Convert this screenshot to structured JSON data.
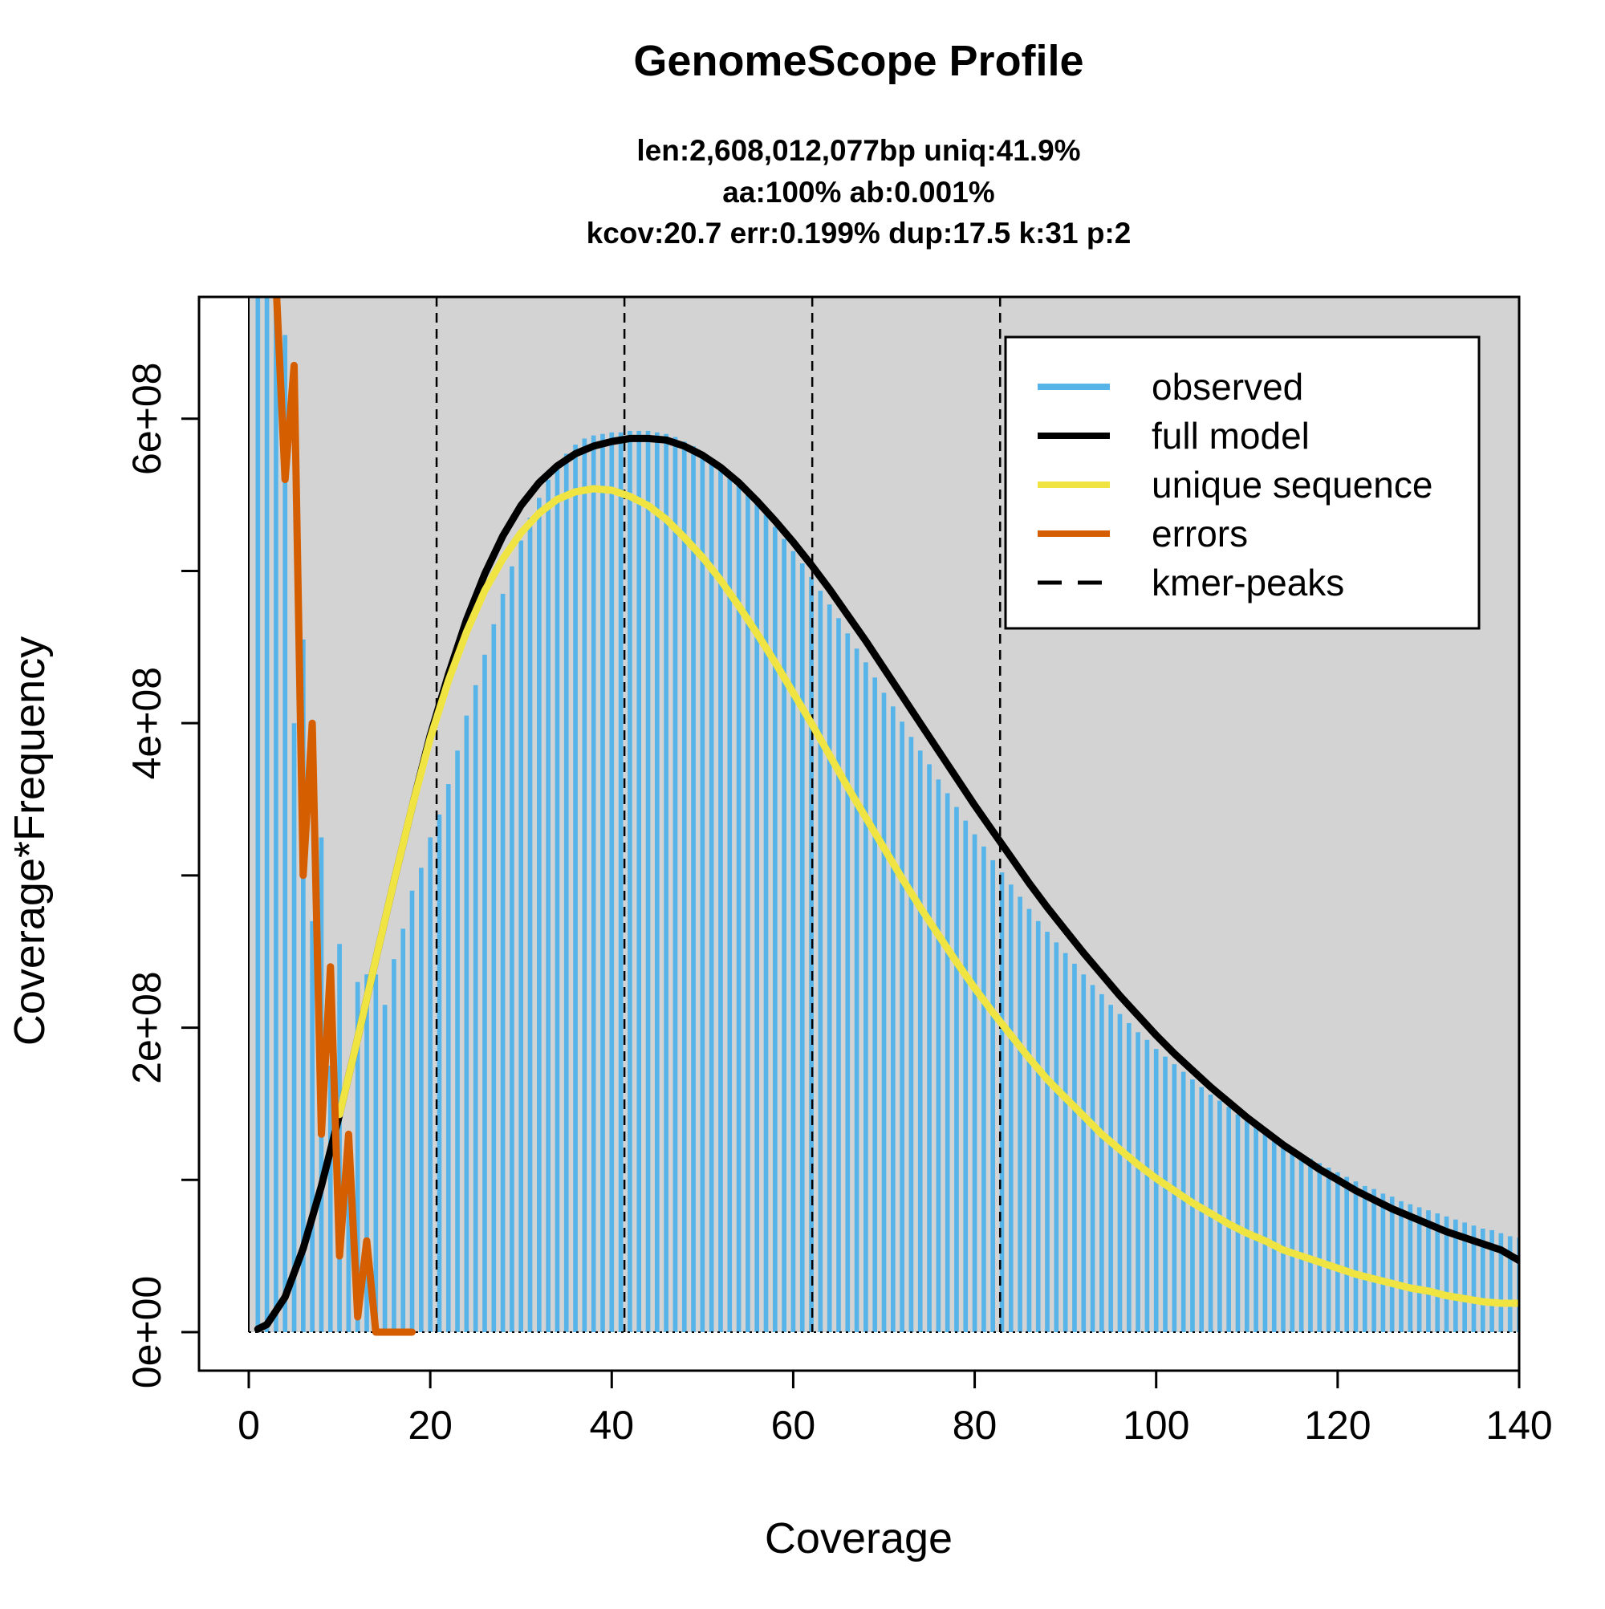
{
  "chart_data": {
    "type": "line",
    "title": "GenomeScope Profile",
    "subtitle_lines": [
      "len:2,608,012,077bp uniq:41.9%",
      "aa:100% ab:0.001%",
      "kcov:20.7 err:0.199%  dup:17.5  k:31 p:2"
    ],
    "xlabel": "Coverage",
    "ylabel": "Coverage*Frequency",
    "xlim": [
      0,
      140
    ],
    "ylim": [
      0,
      680000000
    ],
    "x_ticks": [
      0,
      20,
      40,
      60,
      80,
      100,
      120,
      140
    ],
    "x_tick_labels": [
      "0",
      "20",
      "40",
      "60",
      "80",
      "100",
      "120",
      "140"
    ],
    "y_ticks": [
      0,
      200000000,
      400000000,
      600000000
    ],
    "y_tick_labels": [
      "0e+00",
      "2e+08",
      "4e+08",
      "6e+08"
    ],
    "y_minor_ticks": [
      100000000,
      300000000,
      500000000
    ],
    "legend_position": "top-right",
    "grid": false,
    "colors": {
      "observed": "#56B4E9",
      "full_model": "#000000",
      "unique_sequence": "#F0E442",
      "errors": "#D55E00",
      "plot_background": "#D3D3D3"
    },
    "legend": [
      {
        "label": "observed",
        "key": "observed",
        "style": "solid"
      },
      {
        "label": "full model",
        "key": "full_model",
        "style": "solid"
      },
      {
        "label": "unique sequence",
        "key": "unique_sequence",
        "style": "solid"
      },
      {
        "label": "errors",
        "key": "errors",
        "style": "solid"
      },
      {
        "label": "kmer-peaks",
        "key": "full_model",
        "style": "dashed"
      }
    ],
    "kmer_peaks": [
      20.7,
      41.4,
      62.1,
      82.8
    ],
    "observed": {
      "x": [
        1,
        2,
        3,
        4,
        5,
        6,
        7,
        8,
        9,
        10,
        11,
        12,
        13,
        14,
        15,
        16,
        17,
        18,
        19,
        20,
        21,
        22,
        23,
        24,
        25,
        26,
        27,
        28,
        29,
        30,
        31,
        32,
        33,
        34,
        35,
        36,
        37,
        38,
        39,
        40,
        41,
        42,
        43,
        44,
        45,
        46,
        47,
        48,
        49,
        50,
        51,
        52,
        53,
        54,
        55,
        56,
        57,
        58,
        59,
        60,
        61,
        62,
        63,
        64,
        65,
        66,
        67,
        68,
        69,
        70,
        71,
        72,
        73,
        74,
        75,
        76,
        77,
        78,
        79,
        80,
        81,
        82,
        83,
        84,
        85,
        86,
        87,
        88,
        89,
        90,
        91,
        92,
        93,
        94,
        95,
        96,
        97,
        98,
        99,
        100,
        101,
        102,
        103,
        104,
        105,
        106,
        107,
        108,
        109,
        110,
        111,
        112,
        113,
        114,
        115,
        116,
        117,
        118,
        119,
        120,
        121,
        122,
        123,
        124,
        125,
        126,
        127,
        128,
        129,
        130,
        131,
        132,
        133,
        134,
        135,
        136,
        137,
        138,
        139,
        140
      ],
      "y": [
        690000000,
        690000000,
        690000000,
        655000000,
        400000000,
        455000000,
        270000000,
        325000000,
        175000000,
        255000000,
        130000000,
        230000000,
        235000000,
        235000000,
        215000000,
        245000000,
        265000000,
        290000000,
        305000000,
        325000000,
        340000000,
        360000000,
        382000000,
        405000000,
        425000000,
        445000000,
        465000000,
        485000000,
        503000000,
        520000000,
        535000000,
        548000000,
        560000000,
        569000000,
        577000000,
        583000000,
        587000000,
        589000000,
        590000000,
        591000000,
        591000000,
        592000000,
        592000000,
        592000000,
        591000000,
        590000000,
        588000000,
        585000000,
        582000000,
        578000000,
        574000000,
        569000000,
        564000000,
        558000000,
        551000000,
        544000000,
        537000000,
        529000000,
        521000000,
        513000000,
        505000000,
        496000000,
        487000000,
        478000000,
        469000000,
        459000000,
        449000000,
        440000000,
        430000000,
        420000000,
        411000000,
        401000000,
        391000000,
        382000000,
        373000000,
        363000000,
        354000000,
        345000000,
        336000000,
        327000000,
        319000000,
        310000000,
        302000000,
        294000000,
        286000000,
        278000000,
        270000000,
        263000000,
        256000000,
        249000000,
        242000000,
        235000000,
        228000000,
        222000000,
        215000000,
        209000000,
        203000000,
        197000000,
        192000000,
        186000000,
        181000000,
        176000000,
        171000000,
        166000000,
        161000000,
        156000000,
        152000000,
        148000000,
        143000000,
        139000000,
        135000000,
        131000000,
        128000000,
        124000000,
        120000000,
        117000000,
        114000000,
        111000000,
        108000000,
        105000000,
        102000000,
        99000000,
        96000000,
        94000000,
        91000000,
        89000000,
        86000000,
        84000000,
        82000000,
        80000000,
        78000000,
        76000000,
        74000000,
        72000000,
        70000000,
        68000000,
        67000000,
        65000000,
        63000000,
        62000000
      ]
    },
    "errors": {
      "x": [
        3,
        4,
        5,
        6,
        7,
        8,
        9,
        10,
        11,
        12,
        13,
        14,
        15,
        16,
        17,
        18
      ],
      "y": [
        690000000,
        560000000,
        635000000,
        300000000,
        400000000,
        130000000,
        240000000,
        50000000,
        130000000,
        10000000,
        60000000,
        0,
        0,
        0,
        0,
        0
      ]
    },
    "full_model": {
      "x": [
        1,
        2,
        4,
        6,
        8,
        10,
        12,
        14,
        16,
        18,
        20,
        22,
        24,
        26,
        28,
        30,
        32,
        34,
        36,
        38,
        40,
        42,
        44,
        46,
        48,
        50,
        52,
        54,
        56,
        58,
        60,
        62,
        64,
        66,
        68,
        70,
        72,
        74,
        76,
        78,
        80,
        82,
        84,
        86,
        88,
        90,
        92,
        94,
        96,
        98,
        100,
        102,
        104,
        106,
        108,
        110,
        112,
        114,
        116,
        118,
        120,
        122,
        124,
        126,
        128,
        130,
        132,
        134,
        136,
        138,
        140
      ],
      "y": [
        2000000,
        5000000,
        23000000,
        55000000,
        96000000,
        143000000,
        193000000,
        245000000,
        296000000,
        345000000,
        392000000,
        432000000,
        468000000,
        498000000,
        523000000,
        543000000,
        558000000,
        569000000,
        577000000,
        582000000,
        585000000,
        587000000,
        587000000,
        586000000,
        582000000,
        576000000,
        568000000,
        558000000,
        546000000,
        533000000,
        519000000,
        504000000,
        488000000,
        471000000,
        454000000,
        436000000,
        418000000,
        400000000,
        382000000,
        364000000,
        346000000,
        329000000,
        312000000,
        295000000,
        279000000,
        264000000,
        249000000,
        235000000,
        221000000,
        208000000,
        195000000,
        183000000,
        172000000,
        161000000,
        151000000,
        141000000,
        132000000,
        123000000,
        115000000,
        107000000,
        100000000,
        93000000,
        87000000,
        81000000,
        76000000,
        71000000,
        66000000,
        62000000,
        58000000,
        54000000,
        47000000
      ]
    },
    "unique_sequence": {
      "x": [
        10,
        12,
        14,
        16,
        18,
        20,
        22,
        24,
        26,
        28,
        30,
        32,
        34,
        36,
        38,
        40,
        42,
        44,
        46,
        48,
        50,
        52,
        54,
        56,
        58,
        60,
        62,
        64,
        66,
        68,
        70,
        72,
        74,
        76,
        78,
        80,
        82,
        84,
        86,
        88,
        90,
        92,
        94,
        96,
        98,
        100,
        102,
        104,
        106,
        108,
        110,
        112,
        114,
        116,
        118,
        120,
        122,
        124,
        126,
        128,
        130,
        132,
        134,
        136,
        138,
        140
      ],
      "y": [
        143000000,
        193000000,
        245000000,
        296000000,
        345000000,
        390000000,
        428000000,
        460000000,
        487000000,
        508000000,
        525000000,
        538000000,
        547000000,
        552000000,
        554000000,
        553000000,
        549000000,
        543000000,
        534000000,
        522000000,
        509000000,
        494000000,
        477000000,
        459000000,
        440000000,
        420000000,
        400000000,
        379000000,
        358000000,
        338000000,
        318000000,
        298000000,
        279000000,
        261000000,
        243000000,
        226000000,
        210000000,
        195000000,
        180000000,
        166000000,
        154000000,
        142000000,
        130000000,
        120000000,
        110000000,
        101000000,
        93000000,
        85000000,
        78000000,
        71000000,
        65000000,
        60000000,
        54000000,
        50000000,
        46000000,
        42000000,
        38000000,
        35000000,
        32000000,
        29000000,
        27000000,
        24000000,
        22000000,
        20000000,
        19000000,
        19000000
      ]
    }
  }
}
